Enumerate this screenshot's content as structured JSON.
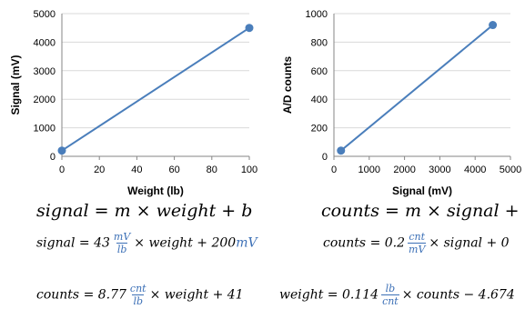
{
  "chart_data": [
    {
      "type": "line",
      "xlabel": "Weight (lb)",
      "ylabel": "Signal (mV)",
      "xlim": [
        0,
        100
      ],
      "ylim": [
        0,
        5000
      ],
      "xticks": [
        0,
        20,
        40,
        60,
        80,
        100
      ],
      "yticks": [
        0,
        1000,
        2000,
        3000,
        4000,
        5000
      ],
      "grid": "horizontal",
      "color": "#4a7ebb",
      "series": [
        {
          "x": [
            0,
            100
          ],
          "y": [
            200,
            4500
          ]
        }
      ]
    },
    {
      "type": "line",
      "xlabel": "Signal (mV)",
      "ylabel": "A/D counts",
      "xlim": [
        0,
        5000
      ],
      "ylim": [
        0,
        1000
      ],
      "xticks": [
        0,
        1000,
        2000,
        3000,
        4000,
        5000
      ],
      "yticks": [
        0,
        200,
        400,
        600,
        800,
        1000
      ],
      "grid": "horizontal",
      "color": "#4a7ebb",
      "series": [
        {
          "x": [
            200,
            4500
          ],
          "y": [
            40,
            920
          ]
        }
      ]
    }
  ],
  "equations": {
    "general_left": "signal = m × weight + b",
    "general_right": "counts = m × signal + b",
    "signal_eq": {
      "lhs": "signal = 43",
      "num": "mV",
      "den": "lb",
      "mid": "× weight + 200",
      "unit": "mV"
    },
    "counts_eq": {
      "lhs": "counts = 0.2",
      "num": "cnt",
      "den": "mV",
      "rest": "× signal + 0"
    },
    "counts_weight_eq": {
      "lhs": "counts = 8.77",
      "num": "cnt",
      "den": "lb",
      "rest": "× weight + 41"
    },
    "weight_eq": {
      "lhs": "weight = 0.114",
      "num": "lb",
      "den": "cnt",
      "rest": "× counts − 4.674"
    }
  }
}
